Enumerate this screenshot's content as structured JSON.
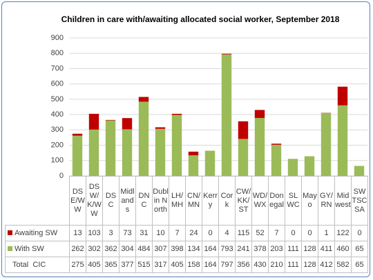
{
  "chart_data": {
    "type": "bar",
    "stacked": true,
    "title": "Children in care with/awaiting allocated social worker, September 2018",
    "categories": [
      "DSE/WW",
      "DSW/K/WW",
      "DSC",
      "Midlands",
      "DNC",
      "Dublin North",
      "LH/MH",
      "CN/MN",
      "Kerry",
      "Cork",
      "CW/KK/ST",
      "WD/WX",
      "Donegal",
      "SLWC",
      "Mayo",
      "GY/RN",
      "Midwest",
      "SWTSCSA"
    ],
    "series": [
      {
        "name": "With SW",
        "color": "#9bbb59",
        "values": [
          262,
          302,
          362,
          304,
          484,
          307,
          398,
          134,
          164,
          793,
          241,
          378,
          203,
          111,
          128,
          411,
          460,
          65
        ]
      },
      {
        "name": "Awaiting SW",
        "color": "#c00000",
        "values": [
          13,
          103,
          3,
          73,
          31,
          10,
          7,
          24,
          0,
          4,
          115,
          52,
          7,
          0,
          0,
          1,
          122,
          0
        ]
      }
    ],
    "totals": {
      "name": "Total  CIC",
      "values": [
        275,
        405,
        365,
        377,
        515,
        317,
        405,
        158,
        164,
        797,
        356,
        430,
        210,
        111,
        128,
        412,
        582,
        65
      ]
    },
    "ylim": [
      0,
      900
    ],
    "yticks": [
      0,
      100,
      200,
      300,
      400,
      500,
      600,
      700,
      800,
      900
    ],
    "grid": true
  }
}
